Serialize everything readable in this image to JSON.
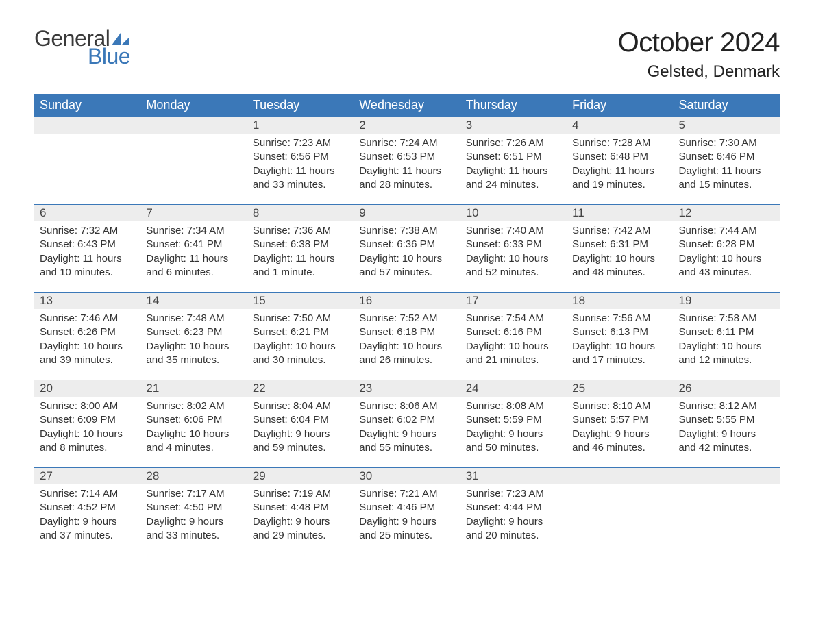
{
  "brand": {
    "general": "General",
    "blue": "Blue",
    "sail_color": "#3b78b8"
  },
  "title": "October 2024",
  "location": "Gelsted, Denmark",
  "colors": {
    "header_bg": "#3b78b8",
    "header_text": "#ffffff",
    "daynum_bg": "#ededed",
    "row_divider": "#3b78b8",
    "body_text": "#333333",
    "background": "#ffffff"
  },
  "typography": {
    "title_fontsize": 40,
    "location_fontsize": 24,
    "dayheader_fontsize": 18,
    "daynum_fontsize": 17,
    "body_fontsize": 15,
    "font_family": "Arial"
  },
  "layout": {
    "columns": 7,
    "rows": 5,
    "start_day_index": 2
  },
  "day_headers": [
    "Sunday",
    "Monday",
    "Tuesday",
    "Wednesday",
    "Thursday",
    "Friday",
    "Saturday"
  ],
  "days": [
    {
      "num": 1,
      "sunrise": "7:23 AM",
      "sunset": "6:56 PM",
      "daylight": "11 hours and 33 minutes."
    },
    {
      "num": 2,
      "sunrise": "7:24 AM",
      "sunset": "6:53 PM",
      "daylight": "11 hours and 28 minutes."
    },
    {
      "num": 3,
      "sunrise": "7:26 AM",
      "sunset": "6:51 PM",
      "daylight": "11 hours and 24 minutes."
    },
    {
      "num": 4,
      "sunrise": "7:28 AM",
      "sunset": "6:48 PM",
      "daylight": "11 hours and 19 minutes."
    },
    {
      "num": 5,
      "sunrise": "7:30 AM",
      "sunset": "6:46 PM",
      "daylight": "11 hours and 15 minutes."
    },
    {
      "num": 6,
      "sunrise": "7:32 AM",
      "sunset": "6:43 PM",
      "daylight": "11 hours and 10 minutes."
    },
    {
      "num": 7,
      "sunrise": "7:34 AM",
      "sunset": "6:41 PM",
      "daylight": "11 hours and 6 minutes."
    },
    {
      "num": 8,
      "sunrise": "7:36 AM",
      "sunset": "6:38 PM",
      "daylight": "11 hours and 1 minute."
    },
    {
      "num": 9,
      "sunrise": "7:38 AM",
      "sunset": "6:36 PM",
      "daylight": "10 hours and 57 minutes."
    },
    {
      "num": 10,
      "sunrise": "7:40 AM",
      "sunset": "6:33 PM",
      "daylight": "10 hours and 52 minutes."
    },
    {
      "num": 11,
      "sunrise": "7:42 AM",
      "sunset": "6:31 PM",
      "daylight": "10 hours and 48 minutes."
    },
    {
      "num": 12,
      "sunrise": "7:44 AM",
      "sunset": "6:28 PM",
      "daylight": "10 hours and 43 minutes."
    },
    {
      "num": 13,
      "sunrise": "7:46 AM",
      "sunset": "6:26 PM",
      "daylight": "10 hours and 39 minutes."
    },
    {
      "num": 14,
      "sunrise": "7:48 AM",
      "sunset": "6:23 PM",
      "daylight": "10 hours and 35 minutes."
    },
    {
      "num": 15,
      "sunrise": "7:50 AM",
      "sunset": "6:21 PM",
      "daylight": "10 hours and 30 minutes."
    },
    {
      "num": 16,
      "sunrise": "7:52 AM",
      "sunset": "6:18 PM",
      "daylight": "10 hours and 26 minutes."
    },
    {
      "num": 17,
      "sunrise": "7:54 AM",
      "sunset": "6:16 PM",
      "daylight": "10 hours and 21 minutes."
    },
    {
      "num": 18,
      "sunrise": "7:56 AM",
      "sunset": "6:13 PM",
      "daylight": "10 hours and 17 minutes."
    },
    {
      "num": 19,
      "sunrise": "7:58 AM",
      "sunset": "6:11 PM",
      "daylight": "10 hours and 12 minutes."
    },
    {
      "num": 20,
      "sunrise": "8:00 AM",
      "sunset": "6:09 PM",
      "daylight": "10 hours and 8 minutes."
    },
    {
      "num": 21,
      "sunrise": "8:02 AM",
      "sunset": "6:06 PM",
      "daylight": "10 hours and 4 minutes."
    },
    {
      "num": 22,
      "sunrise": "8:04 AM",
      "sunset": "6:04 PM",
      "daylight": "9 hours and 59 minutes."
    },
    {
      "num": 23,
      "sunrise": "8:06 AM",
      "sunset": "6:02 PM",
      "daylight": "9 hours and 55 minutes."
    },
    {
      "num": 24,
      "sunrise": "8:08 AM",
      "sunset": "5:59 PM",
      "daylight": "9 hours and 50 minutes."
    },
    {
      "num": 25,
      "sunrise": "8:10 AM",
      "sunset": "5:57 PM",
      "daylight": "9 hours and 46 minutes."
    },
    {
      "num": 26,
      "sunrise": "8:12 AM",
      "sunset": "5:55 PM",
      "daylight": "9 hours and 42 minutes."
    },
    {
      "num": 27,
      "sunrise": "7:14 AM",
      "sunset": "4:52 PM",
      "daylight": "9 hours and 37 minutes."
    },
    {
      "num": 28,
      "sunrise": "7:17 AM",
      "sunset": "4:50 PM",
      "daylight": "9 hours and 33 minutes."
    },
    {
      "num": 29,
      "sunrise": "7:19 AM",
      "sunset": "4:48 PM",
      "daylight": "9 hours and 29 minutes."
    },
    {
      "num": 30,
      "sunrise": "7:21 AM",
      "sunset": "4:46 PM",
      "daylight": "9 hours and 25 minutes."
    },
    {
      "num": 31,
      "sunrise": "7:23 AM",
      "sunset": "4:44 PM",
      "daylight": "9 hours and 20 minutes."
    }
  ],
  "labels": {
    "sunrise": "Sunrise:",
    "sunset": "Sunset:",
    "daylight": "Daylight:"
  }
}
